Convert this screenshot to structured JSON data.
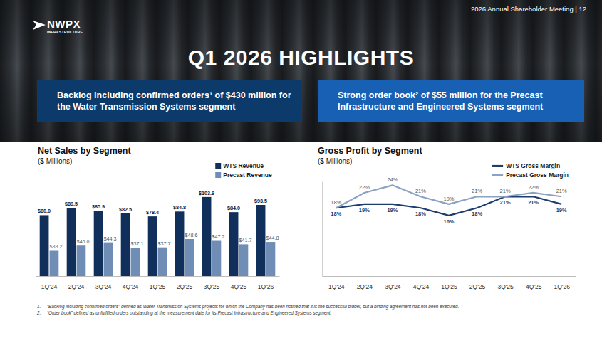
{
  "header": {
    "logo": "NWPX",
    "logo_subtitle": "INFRASTRUCTURE",
    "meeting": "2026 Annual Shareholder Meeting | 12",
    "title": "Q1 2026 HIGHLIGHTS"
  },
  "highlights": [
    "Backlog including confirmed orders¹ of $430 million for the Water Transmission Systems segment",
    "Strong order book² of $55 million for the Precast Infrastructure and Engineered Systems segment"
  ],
  "footnotes": [
    {
      "number": "1.",
      "text": "“Backlog including confirmed orders” defined as Water Transmission Systems projects for which the Company has been notified that it is the successful bidder, but a binding agreement has not been executed."
    },
    {
      "number": "2.",
      "text": "“Order book” defined as unfulfilled orders outstanding at the measurement date for its Precast Infrastructure and Engineered Systems segment."
    }
  ],
  "chart_data": [
    {
      "type": "bar",
      "title": "Net Sales by Segment",
      "subtitle": "($ Millions)",
      "categories": [
        "1Q'24",
        "2Q'24",
        "3Q'24",
        "4Q'24",
        "1Q'25",
        "2Q'25",
        "3Q'25",
        "4Q'25",
        "1Q'26"
      ],
      "series": [
        {
          "name": "WTS Revenue",
          "color": "#102f5a",
          "values": [
            80.0,
            89.5,
            85.9,
            82.5,
            78.4,
            84.8,
            103.9,
            84.0,
            93.5
          ],
          "value_labels": [
            "$80.0",
            "$89.5",
            "$85.9",
            "$82.5",
            "$78.4",
            "$84.8",
            "$103.9",
            "$84.0",
            "$93.5"
          ]
        },
        {
          "name": "Precast Revenue",
          "color": "#6f8db5",
          "values": [
            33.2,
            40.0,
            44.3,
            37.1,
            37.7,
            48.6,
            47.2,
            41.7,
            44.8
          ],
          "value_labels": [
            "$33.2",
            "$40.0",
            "$44.3",
            "$37.1",
            "$37.7",
            "$48.6",
            "$47.2",
            "$41.7",
            "$44.8"
          ]
        }
      ],
      "ylim": [
        0,
        115
      ],
      "data_labels": true,
      "legend": "top-right",
      "tick_labels": "x"
    },
    {
      "type": "line",
      "title": "Gross Profit by Segment",
      "subtitle": "($ Millions)",
      "categories": [
        "1Q'24",
        "2Q'24",
        "3Q'24",
        "4Q'24",
        "1Q'25",
        "2Q'25",
        "3Q'25",
        "4Q'25",
        "1Q'26"
      ],
      "series": [
        {
          "name": "WTS Gross Margin",
          "color": "#1e3d6b",
          "values": [
            18,
            19,
            19,
            18,
            16,
            18,
            21,
            21,
            19
          ],
          "value_labels": [
            "18%",
            "19%",
            "19%",
            "18%",
            "16%",
            "18%",
            "21%",
            "21%",
            "19%"
          ]
        },
        {
          "name": "Precast Gross Margin",
          "color": "#8aa2c4",
          "values": [
            18,
            22,
            24,
            21,
            19,
            21,
            21,
            22,
            21
          ],
          "value_labels": [
            "18%",
            "22%",
            "24%",
            "21%",
            "19%",
            "21%",
            "21%",
            "22%",
            "21%"
          ]
        }
      ],
      "ylim": [
        0,
        25
      ],
      "data_labels": true,
      "legend": "top-right",
      "tick_labels": "x"
    }
  ]
}
